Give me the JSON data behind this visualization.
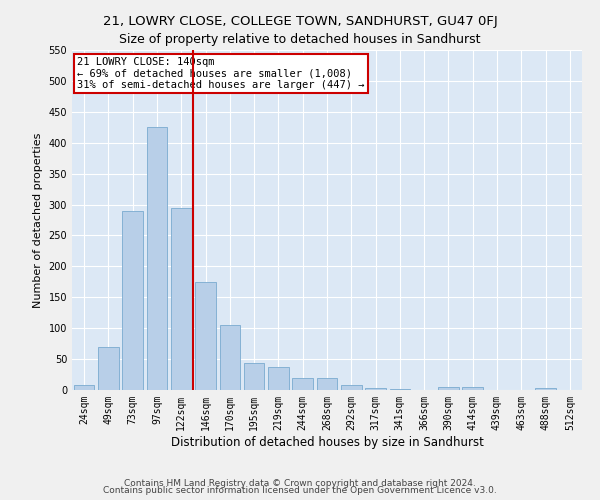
{
  "title1": "21, LOWRY CLOSE, COLLEGE TOWN, SANDHURST, GU47 0FJ",
  "title2": "Size of property relative to detached houses in Sandhurst",
  "xlabel": "Distribution of detached houses by size in Sandhurst",
  "ylabel": "Number of detached properties",
  "categories": [
    "24sqm",
    "49sqm",
    "73sqm",
    "97sqm",
    "122sqm",
    "146sqm",
    "170sqm",
    "195sqm",
    "219sqm",
    "244sqm",
    "268sqm",
    "292sqm",
    "317sqm",
    "341sqm",
    "366sqm",
    "390sqm",
    "414sqm",
    "439sqm",
    "463sqm",
    "488sqm",
    "512sqm"
  ],
  "values": [
    8,
    70,
    290,
    425,
    295,
    175,
    105,
    43,
    38,
    20,
    20,
    8,
    3,
    1,
    0,
    5,
    5,
    0,
    0,
    3,
    0
  ],
  "bar_color": "#b8cfe8",
  "bar_edge_color": "#7aaad0",
  "vline_color": "#cc0000",
  "annotation_text": "21 LOWRY CLOSE: 140sqm\n← 69% of detached houses are smaller (1,008)\n31% of semi-detached houses are larger (447) →",
  "annotation_box_color": "#cc0000",
  "ylim": [
    0,
    550
  ],
  "yticks": [
    0,
    50,
    100,
    150,
    200,
    250,
    300,
    350,
    400,
    450,
    500,
    550
  ],
  "footnote1": "Contains HM Land Registry data © Crown copyright and database right 2024.",
  "footnote2": "Contains public sector information licensed under the Open Government Licence v3.0.",
  "bg_color": "#dce8f5",
  "grid_color": "#ffffff",
  "title1_fontsize": 9.5,
  "title2_fontsize": 9,
  "xlabel_fontsize": 8.5,
  "ylabel_fontsize": 8,
  "tick_fontsize": 7,
  "annotation_fontsize": 7.5,
  "footnote_fontsize": 6.5
}
